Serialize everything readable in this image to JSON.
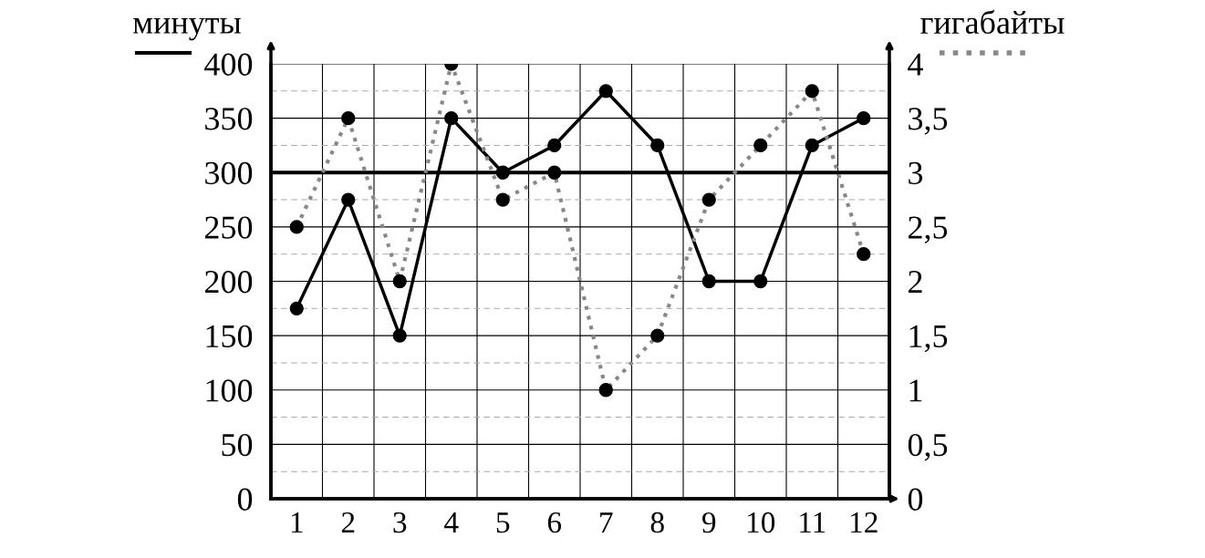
{
  "chart_data": {
    "type": "line",
    "ylabel": "минуты",
    "y2label": "гигабайты",
    "categories": [
      "1",
      "2",
      "3",
      "4",
      "5",
      "6",
      "7",
      "8",
      "9",
      "10",
      "11",
      "12"
    ],
    "series": [
      {
        "color": "#000000",
        "line_style": "solid",
        "values": [
          175,
          275,
          150,
          350,
          300,
          325,
          375,
          325,
          200,
          200,
          325,
          350
        ]
      },
      {
        "color": "#888888",
        "line_style": "dotted",
        "axis": "y2",
        "values": [
          2.5,
          3.5,
          2,
          4,
          2.75,
          3,
          1,
          1.5,
          2.75,
          3.25,
          3.75,
          2.25
        ]
      }
    ],
    "ylim": [
      0,
      400
    ],
    "yticks": [
      0,
      50,
      100,
      150,
      200,
      250,
      300,
      350,
      400
    ],
    "y2lim": [
      0,
      4
    ],
    "y2ticks": [
      0,
      {
        "value": 0.5,
        "label": "0,5"
      },
      1,
      {
        "value": 1.5,
        "label": "1,5"
      },
      2,
      {
        "value": 2.5,
        "label": "2,5"
      },
      3,
      {
        "value": 3.5,
        "label": "3,5"
      },
      4
    ],
    "ref_lines": [
      {
        "axis": "y",
        "value": 300,
        "color": "#000000",
        "line_style": "solid"
      }
    ],
    "grid": true,
    "marker": "circle"
  }
}
